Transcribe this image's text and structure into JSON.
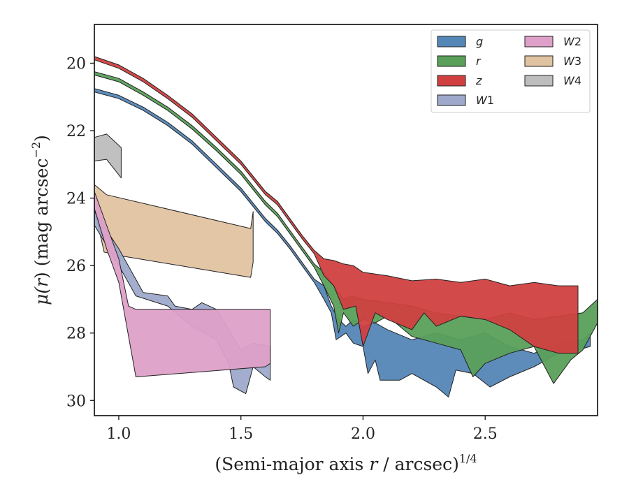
{
  "chart_data": {
    "type": "area",
    "xlabel": "(Semi-major axis r / arcsec)^1/4",
    "xlabel_parts": {
      "open": "(Semi-major axis ",
      "var": "r",
      "mid": " / arcsec)",
      "sup": "1/4"
    },
    "ylabel": "μ(r) (mag arcsec^−2)",
    "ylabel_parts": {
      "mu": "μ(",
      "var": "r",
      "rest": ") (mag arcsec",
      "sup": "−2",
      "close": ")"
    },
    "xlim": [
      0.9,
      2.96
    ],
    "ylim": [
      30.45,
      18.85
    ],
    "xticks": [
      1.0,
      1.5,
      2.0,
      2.5
    ],
    "xtick_labels": [
      "1.0",
      "1.5",
      "2.0",
      "2.5"
    ],
    "yticks": [
      20,
      22,
      24,
      26,
      28,
      30
    ],
    "ytick_labels": [
      "20",
      "22",
      "24",
      "26",
      "28",
      "30"
    ],
    "grid": false,
    "legend_position": "top-right",
    "series": [
      {
        "name": "W3",
        "label_letter": "W",
        "label_digit": "3",
        "color": "#e0c3a0",
        "upper": [
          [
            0.9,
            23.6
          ],
          [
            0.95,
            23.9
          ],
          [
            1.54,
            24.9
          ],
          [
            1.55,
            24.4
          ]
        ],
        "lower": [
          [
            0.9,
            24.3
          ],
          [
            0.94,
            25.6
          ],
          [
            1.0,
            25.7
          ],
          [
            1.54,
            26.35
          ],
          [
            1.55,
            25.9
          ]
        ]
      },
      {
        "name": "W1",
        "label_letter": "W",
        "label_digit": "1",
        "color": "#9ea9cb",
        "upper": [
          [
            0.9,
            24.4
          ],
          [
            1.0,
            25.5
          ],
          [
            1.1,
            26.8
          ],
          [
            1.2,
            26.9
          ],
          [
            1.23,
            27.2
          ],
          [
            1.3,
            27.3
          ],
          [
            1.34,
            27.1
          ],
          [
            1.4,
            27.3
          ],
          [
            1.45,
            27.9
          ],
          [
            1.5,
            28.5
          ],
          [
            1.55,
            28.3
          ],
          [
            1.62,
            28.4
          ]
        ],
        "lower": [
          [
            0.9,
            24.8
          ],
          [
            1.0,
            26.0
          ],
          [
            1.07,
            26.9
          ],
          [
            1.2,
            27.2
          ],
          [
            1.3,
            27.8
          ],
          [
            1.4,
            28.2
          ],
          [
            1.45,
            28.9
          ],
          [
            1.47,
            29.6
          ],
          [
            1.52,
            29.8
          ],
          [
            1.55,
            29.0
          ],
          [
            1.6,
            29.3
          ],
          [
            1.62,
            29.4
          ]
        ]
      },
      {
        "name": "W2",
        "label_letter": "W",
        "label_digit": "2",
        "color": "#dea0c8",
        "upper": [
          [
            0.9,
            23.8
          ],
          [
            1.0,
            25.8
          ],
          [
            1.04,
            27.2
          ],
          [
            1.07,
            27.3
          ],
          [
            1.6,
            27.3
          ],
          [
            1.62,
            27.3
          ]
        ],
        "lower": [
          [
            0.9,
            24.3
          ],
          [
            0.95,
            25.5
          ],
          [
            1.0,
            26.5
          ],
          [
            1.07,
            29.3
          ],
          [
            1.6,
            29.0
          ],
          [
            1.62,
            28.9
          ]
        ]
      },
      {
        "name": "W4",
        "label_letter": "W",
        "label_digit": "4",
        "color": "#bdbdbd",
        "upper": [
          [
            0.9,
            22.2
          ],
          [
            0.95,
            22.1
          ],
          [
            1.01,
            22.5
          ]
        ],
        "lower": [
          [
            0.9,
            22.9
          ],
          [
            0.95,
            22.85
          ],
          [
            1.01,
            23.4
          ]
        ]
      },
      {
        "name": "g",
        "label_letter": "g",
        "label_digit": "",
        "color": "#5486b6",
        "upper": [
          [
            0.9,
            20.75
          ],
          [
            1.0,
            20.95
          ],
          [
            1.1,
            21.3
          ],
          [
            1.2,
            21.75
          ],
          [
            1.3,
            22.3
          ],
          [
            1.4,
            23.0
          ],
          [
            1.5,
            23.7
          ],
          [
            1.6,
            24.6
          ],
          [
            1.65,
            24.95
          ],
          [
            1.7,
            25.4
          ],
          [
            1.75,
            25.9
          ],
          [
            1.8,
            26.4
          ],
          [
            1.84,
            26.6
          ],
          [
            1.87,
            27.2
          ],
          [
            1.9,
            27.6
          ],
          [
            1.93,
            27.8
          ],
          [
            1.96,
            27.6
          ],
          [
            2.0,
            27.8
          ],
          [
            2.05,
            27.7
          ],
          [
            2.1,
            27.9
          ],
          [
            2.2,
            28.2
          ],
          [
            2.3,
            28.0
          ],
          [
            2.4,
            28.2
          ],
          [
            2.5,
            28.0
          ],
          [
            2.6,
            28.4
          ],
          [
            2.7,
            28.6
          ],
          [
            2.8,
            28.3
          ],
          [
            2.9,
            28.2
          ],
          [
            2.93,
            28.0
          ]
        ],
        "lower": [
          [
            0.9,
            20.85
          ],
          [
            1.0,
            21.05
          ],
          [
            1.1,
            21.4
          ],
          [
            1.2,
            21.85
          ],
          [
            1.3,
            22.4
          ],
          [
            1.4,
            23.1
          ],
          [
            1.5,
            23.8
          ],
          [
            1.6,
            24.7
          ],
          [
            1.65,
            25.05
          ],
          [
            1.7,
            25.5
          ],
          [
            1.75,
            26.0
          ],
          [
            1.8,
            26.5
          ],
          [
            1.84,
            27.0
          ],
          [
            1.87,
            27.4
          ],
          [
            1.89,
            28.2
          ],
          [
            1.93,
            28.0
          ],
          [
            1.96,
            28.3
          ],
          [
            2.0,
            28.4
          ],
          [
            2.02,
            29.2
          ],
          [
            2.05,
            28.8
          ],
          [
            2.07,
            29.4
          ],
          [
            2.15,
            29.4
          ],
          [
            2.2,
            29.2
          ],
          [
            2.3,
            29.6
          ],
          [
            2.35,
            29.9
          ],
          [
            2.38,
            29.1
          ],
          [
            2.45,
            29.2
          ],
          [
            2.52,
            29.6
          ],
          [
            2.6,
            29.3
          ],
          [
            2.7,
            29.0
          ],
          [
            2.8,
            28.6
          ],
          [
            2.88,
            28.5
          ],
          [
            2.93,
            28.4
          ]
        ]
      },
      {
        "name": "r",
        "label_letter": "r",
        "label_digit": "",
        "color": "#5aa05a",
        "upper": [
          [
            0.9,
            20.25
          ],
          [
            1.0,
            20.45
          ],
          [
            1.1,
            20.85
          ],
          [
            1.2,
            21.3
          ],
          [
            1.3,
            21.85
          ],
          [
            1.4,
            22.5
          ],
          [
            1.5,
            23.2
          ],
          [
            1.6,
            24.1
          ],
          [
            1.65,
            24.45
          ],
          [
            1.7,
            24.95
          ],
          [
            1.75,
            25.45
          ],
          [
            1.8,
            25.95
          ],
          [
            1.84,
            26.2
          ],
          [
            1.88,
            26.6
          ],
          [
            1.92,
            27.0
          ],
          [
            1.95,
            26.9
          ],
          [
            2.0,
            27.0
          ],
          [
            2.1,
            27.1
          ],
          [
            2.2,
            27.2
          ],
          [
            2.3,
            27.4
          ],
          [
            2.4,
            27.5
          ],
          [
            2.5,
            27.6
          ],
          [
            2.6,
            27.4
          ],
          [
            2.7,
            27.6
          ],
          [
            2.8,
            27.5
          ],
          [
            2.9,
            27.4
          ],
          [
            2.96,
            27.0
          ]
        ],
        "lower": [
          [
            0.9,
            20.35
          ],
          [
            1.0,
            20.55
          ],
          [
            1.1,
            20.95
          ],
          [
            1.2,
            21.4
          ],
          [
            1.3,
            21.95
          ],
          [
            1.4,
            22.6
          ],
          [
            1.5,
            23.3
          ],
          [
            1.6,
            24.2
          ],
          [
            1.65,
            24.55
          ],
          [
            1.7,
            25.05
          ],
          [
            1.75,
            25.55
          ],
          [
            1.8,
            26.05
          ],
          [
            1.84,
            26.6
          ],
          [
            1.88,
            27.2
          ],
          [
            1.9,
            28.0
          ],
          [
            1.92,
            27.4
          ],
          [
            1.96,
            27.8
          ],
          [
            2.0,
            27.6
          ],
          [
            2.05,
            27.7
          ],
          [
            2.1,
            27.5
          ],
          [
            2.2,
            28.1
          ],
          [
            2.3,
            28.3
          ],
          [
            2.35,
            28.4
          ],
          [
            2.4,
            28.5
          ],
          [
            2.45,
            29.3
          ],
          [
            2.5,
            28.9
          ],
          [
            2.6,
            28.6
          ],
          [
            2.7,
            28.4
          ],
          [
            2.78,
            29.5
          ],
          [
            2.85,
            28.8
          ],
          [
            2.9,
            28.5
          ],
          [
            2.96,
            27.7
          ]
        ]
      },
      {
        "name": "z",
        "label_letter": "z",
        "label_digit": "",
        "color": "#d04040",
        "upper": [
          [
            0.9,
            19.8
          ],
          [
            1.0,
            20.05
          ],
          [
            1.1,
            20.45
          ],
          [
            1.2,
            20.95
          ],
          [
            1.3,
            21.5
          ],
          [
            1.4,
            22.2
          ],
          [
            1.5,
            22.9
          ],
          [
            1.6,
            23.8
          ],
          [
            1.65,
            24.1
          ],
          [
            1.7,
            24.6
          ],
          [
            1.75,
            25.1
          ],
          [
            1.8,
            25.55
          ],
          [
            1.84,
            25.8
          ],
          [
            1.88,
            25.85
          ],
          [
            1.92,
            25.95
          ],
          [
            1.96,
            26.0
          ],
          [
            2.0,
            26.2
          ],
          [
            2.1,
            26.3
          ],
          [
            2.2,
            26.45
          ],
          [
            2.3,
            26.4
          ],
          [
            2.4,
            26.5
          ],
          [
            2.5,
            26.4
          ],
          [
            2.6,
            26.6
          ],
          [
            2.7,
            26.5
          ],
          [
            2.8,
            26.6
          ],
          [
            2.88,
            26.6
          ]
        ],
        "lower": [
          [
            0.9,
            19.9
          ],
          [
            1.0,
            20.15
          ],
          [
            1.1,
            20.55
          ],
          [
            1.2,
            21.05
          ],
          [
            1.3,
            21.6
          ],
          [
            1.4,
            22.3
          ],
          [
            1.5,
            23.0
          ],
          [
            1.6,
            23.9
          ],
          [
            1.65,
            24.2
          ],
          [
            1.7,
            24.7
          ],
          [
            1.75,
            25.2
          ],
          [
            1.8,
            25.65
          ],
          [
            1.84,
            26.3
          ],
          [
            1.88,
            26.6
          ],
          [
            1.92,
            27.3
          ],
          [
            1.97,
            27.2
          ],
          [
            2.0,
            28.4
          ],
          [
            2.05,
            27.4
          ],
          [
            2.1,
            27.6
          ],
          [
            2.2,
            27.9
          ],
          [
            2.25,
            27.4
          ],
          [
            2.3,
            27.8
          ],
          [
            2.4,
            27.5
          ],
          [
            2.5,
            27.6
          ],
          [
            2.6,
            27.9
          ],
          [
            2.7,
            28.4
          ],
          [
            2.8,
            28.6
          ],
          [
            2.88,
            28.6
          ]
        ]
      }
    ],
    "legend_order": [
      "g",
      "r",
      "z",
      "W1",
      "W2",
      "W3",
      "W4"
    ]
  }
}
